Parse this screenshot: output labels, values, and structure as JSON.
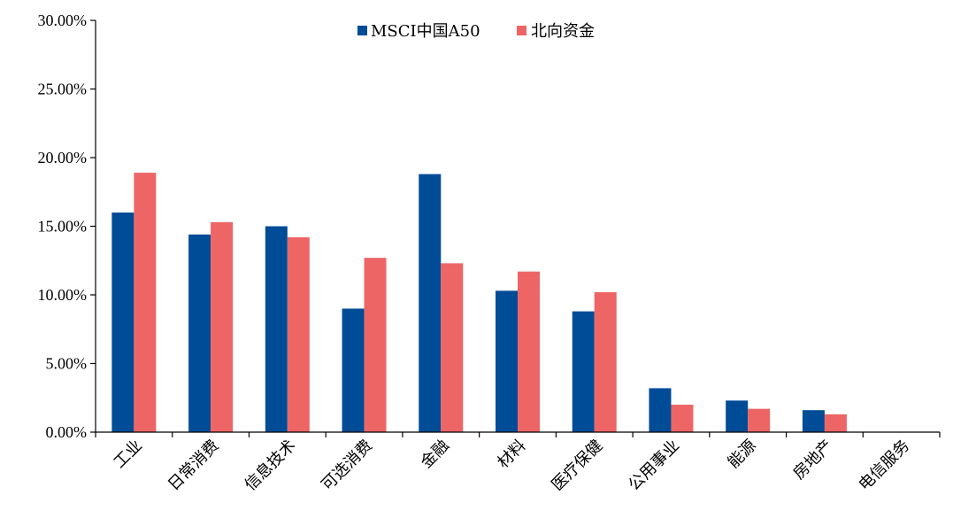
{
  "chart_data": {
    "type": "bar",
    "title": "",
    "xlabel": "",
    "ylabel": "",
    "ylim": [
      0,
      30
    ],
    "yticks": [
      0,
      5,
      10,
      15,
      20,
      25,
      30
    ],
    "ytick_labels": [
      "0.00%",
      "5.00%",
      "10.00%",
      "15.00%",
      "20.00%",
      "25.00%",
      "30.00%"
    ],
    "grid": false,
    "legend_position": "top-center",
    "categories": [
      "工业",
      "日常消费",
      "信息技术",
      "可选消费",
      "金融",
      "材料",
      "医疗保健",
      "公用事业",
      "能源",
      "房地产",
      "电信服务"
    ],
    "series": [
      {
        "name": "MSCI中国A50",
        "color": "#004C97",
        "values": [
          16.0,
          14.4,
          15.0,
          9.0,
          18.8,
          10.3,
          8.8,
          3.2,
          2.3,
          1.6,
          0
        ]
      },
      {
        "name": "北向资金",
        "color": "#EE6566",
        "values": [
          18.9,
          15.3,
          14.2,
          12.7,
          12.3,
          11.7,
          10.2,
          2.0,
          1.7,
          1.3,
          0
        ]
      }
    ]
  }
}
